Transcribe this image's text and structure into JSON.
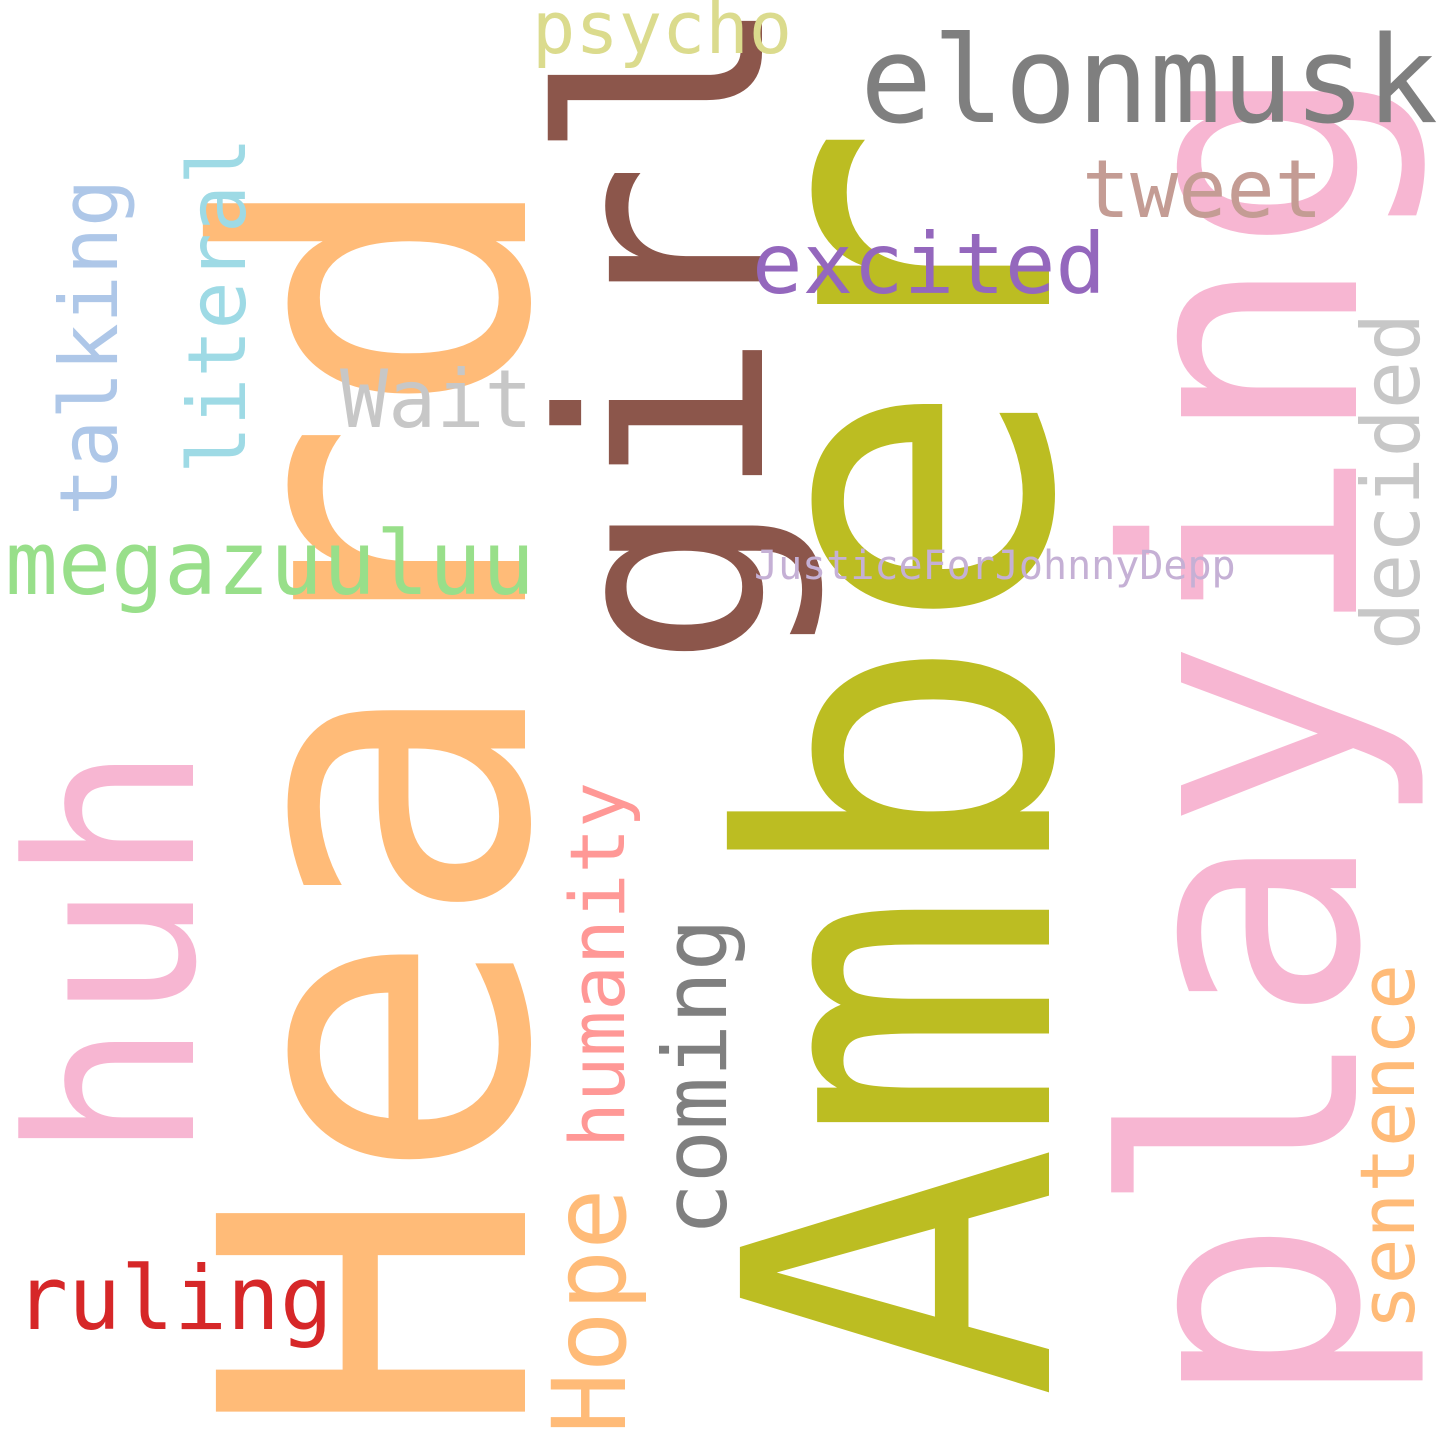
{
  "words": {
    "heard": {
      "text": "Heard",
      "color": "#ffbb78"
    },
    "amber": {
      "text": "Amber",
      "color": "#bcbd22"
    },
    "girl": {
      "text": "girl",
      "color": "#8c564b"
    },
    "playing": {
      "text": "playing",
      "color": "#f7b6d2"
    },
    "huh": {
      "text": "huh",
      "color": "#f7b6d2"
    },
    "elonmusk": {
      "text": "elonmusk",
      "color": "#7f7f7f"
    },
    "tweet": {
      "text": "tweet",
      "color": "#c49c94"
    },
    "excited": {
      "text": "excited",
      "color": "#9467bd"
    },
    "psycho": {
      "text": "psycho",
      "color": "#dbdb8d"
    },
    "wait": {
      "text": "Wait",
      "color": "#c7c7c7"
    },
    "megazuuluu": {
      "text": "megazuuluu",
      "color": "#98df8a"
    },
    "justice": {
      "text": "JusticeForJohnnyDepp",
      "color": "#c5b0d5"
    },
    "talking": {
      "text": "talking",
      "color": "#aec7e8"
    },
    "literal": {
      "text": "literal",
      "color": "#9edae5"
    },
    "decided": {
      "text": "decided",
      "color": "#c7c7c7"
    },
    "humanity": {
      "text": "humanity",
      "color": "#ff9896"
    },
    "coming": {
      "text": "coming",
      "color": "#7f7f7f"
    },
    "hope": {
      "text": "Hope",
      "color": "#ffbb78"
    },
    "sentence": {
      "text": "sentence",
      "color": "#ffbb78"
    },
    "ruling": {
      "text": "ruling",
      "color": "#d62728"
    }
  }
}
